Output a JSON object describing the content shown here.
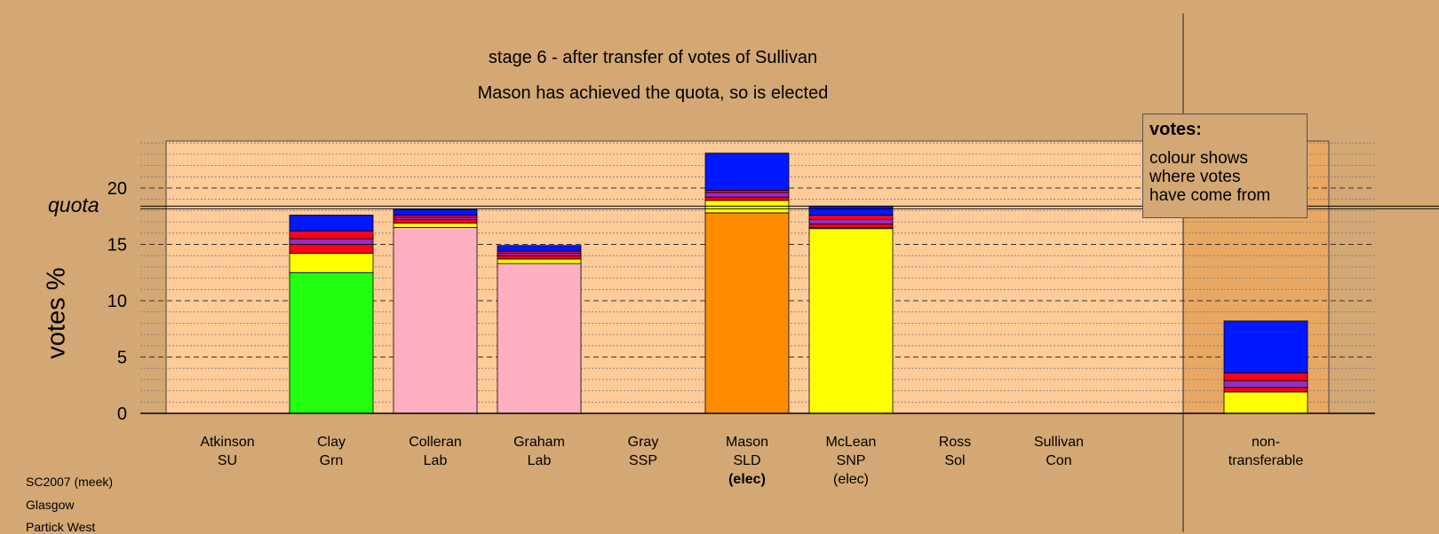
{
  "title": "stage 6 - after transfer of votes of Sullivan",
  "subtitle": "Mason has achieved the quota, so is elected",
  "footer": [
    "SC2007 (meek)",
    "Glasgow",
    "Partick West"
  ],
  "legend": {
    "title": "votes:",
    "lines": [
      "colour shows",
      "where votes",
      "have come from"
    ]
  },
  "colors": {
    "green": "#22ff11",
    "pink": "#ffb0c0",
    "orange": "#ff8c00",
    "yellow": "#ffff00",
    "red": "#ff0018",
    "purple": "#9030c0",
    "blue": "#0018ff",
    "grey": "#606060"
  },
  "chart_data": {
    "type": "bar",
    "stacked": true,
    "ylabel": "votes %",
    "ylim": [
      0,
      24
    ],
    "yticks": [
      0,
      5,
      10,
      15,
      20
    ],
    "quota": 18.4,
    "quota_label": "quota",
    "grid": true,
    "categories": [
      {
        "name": "Atkinson",
        "party": "SU",
        "status": "",
        "segments": []
      },
      {
        "name": "Clay",
        "party": "Grn",
        "status": "",
        "segments": [
          {
            "color": "green",
            "value": 12.5
          },
          {
            "color": "yellow",
            "value": 1.7
          },
          {
            "color": "red",
            "value": 0.8
          },
          {
            "color": "purple",
            "value": 0.5
          },
          {
            "color": "red",
            "value": 0.7
          },
          {
            "color": "blue",
            "value": 1.4
          }
        ]
      },
      {
        "name": "Colleran",
        "party": "Lab",
        "status": "",
        "segments": [
          {
            "color": "pink",
            "value": 16.5
          },
          {
            "color": "yellow",
            "value": 0.4
          },
          {
            "color": "red",
            "value": 0.3
          },
          {
            "color": "purple",
            "value": 0.2
          },
          {
            "color": "red",
            "value": 0.2
          },
          {
            "color": "blue",
            "value": 0.5
          }
        ]
      },
      {
        "name": "Graham",
        "party": "Lab",
        "status": "",
        "segments": [
          {
            "color": "pink",
            "value": 13.3
          },
          {
            "color": "yellow",
            "value": 0.4
          },
          {
            "color": "red",
            "value": 0.3
          },
          {
            "color": "purple",
            "value": 0.2
          },
          {
            "color": "red",
            "value": 0.2
          },
          {
            "color": "blue",
            "value": 0.5
          }
        ]
      },
      {
        "name": "Gray",
        "party": "SSP",
        "status": "",
        "segments": []
      },
      {
        "name": "Mason",
        "party": "SLD",
        "status": "(elec)",
        "bold_status": true,
        "segments": [
          {
            "color": "orange",
            "value": 17.8
          },
          {
            "color": "yellow",
            "value": 1.1
          },
          {
            "color": "red",
            "value": 0.3
          },
          {
            "color": "purple",
            "value": 0.4
          },
          {
            "color": "red",
            "value": 0.2
          },
          {
            "color": "blue",
            "value": 3.3
          }
        ]
      },
      {
        "name": "McLean",
        "party": "SNP",
        "status": "(elec)",
        "bold_status": false,
        "segments": [
          {
            "color": "yellow",
            "value": 16.4
          },
          {
            "color": "grey",
            "value": 0.1
          },
          {
            "color": "red",
            "value": 0.3
          },
          {
            "color": "purple",
            "value": 0.4
          },
          {
            "color": "red",
            "value": 0.4
          },
          {
            "color": "blue",
            "value": 0.8
          }
        ]
      },
      {
        "name": "Ross",
        "party": "Sol",
        "status": "",
        "segments": []
      },
      {
        "name": "Sullivan",
        "party": "Con",
        "status": "",
        "segments": []
      }
    ],
    "nontransferable": {
      "label1": "non-",
      "label2": "transferable",
      "segments": [
        {
          "color": "yellow",
          "value": 1.9
        },
        {
          "color": "red",
          "value": 0.4
        },
        {
          "color": "purple",
          "value": 0.6
        },
        {
          "color": "red",
          "value": 0.7
        },
        {
          "color": "blue",
          "value": 4.6
        }
      ]
    }
  }
}
